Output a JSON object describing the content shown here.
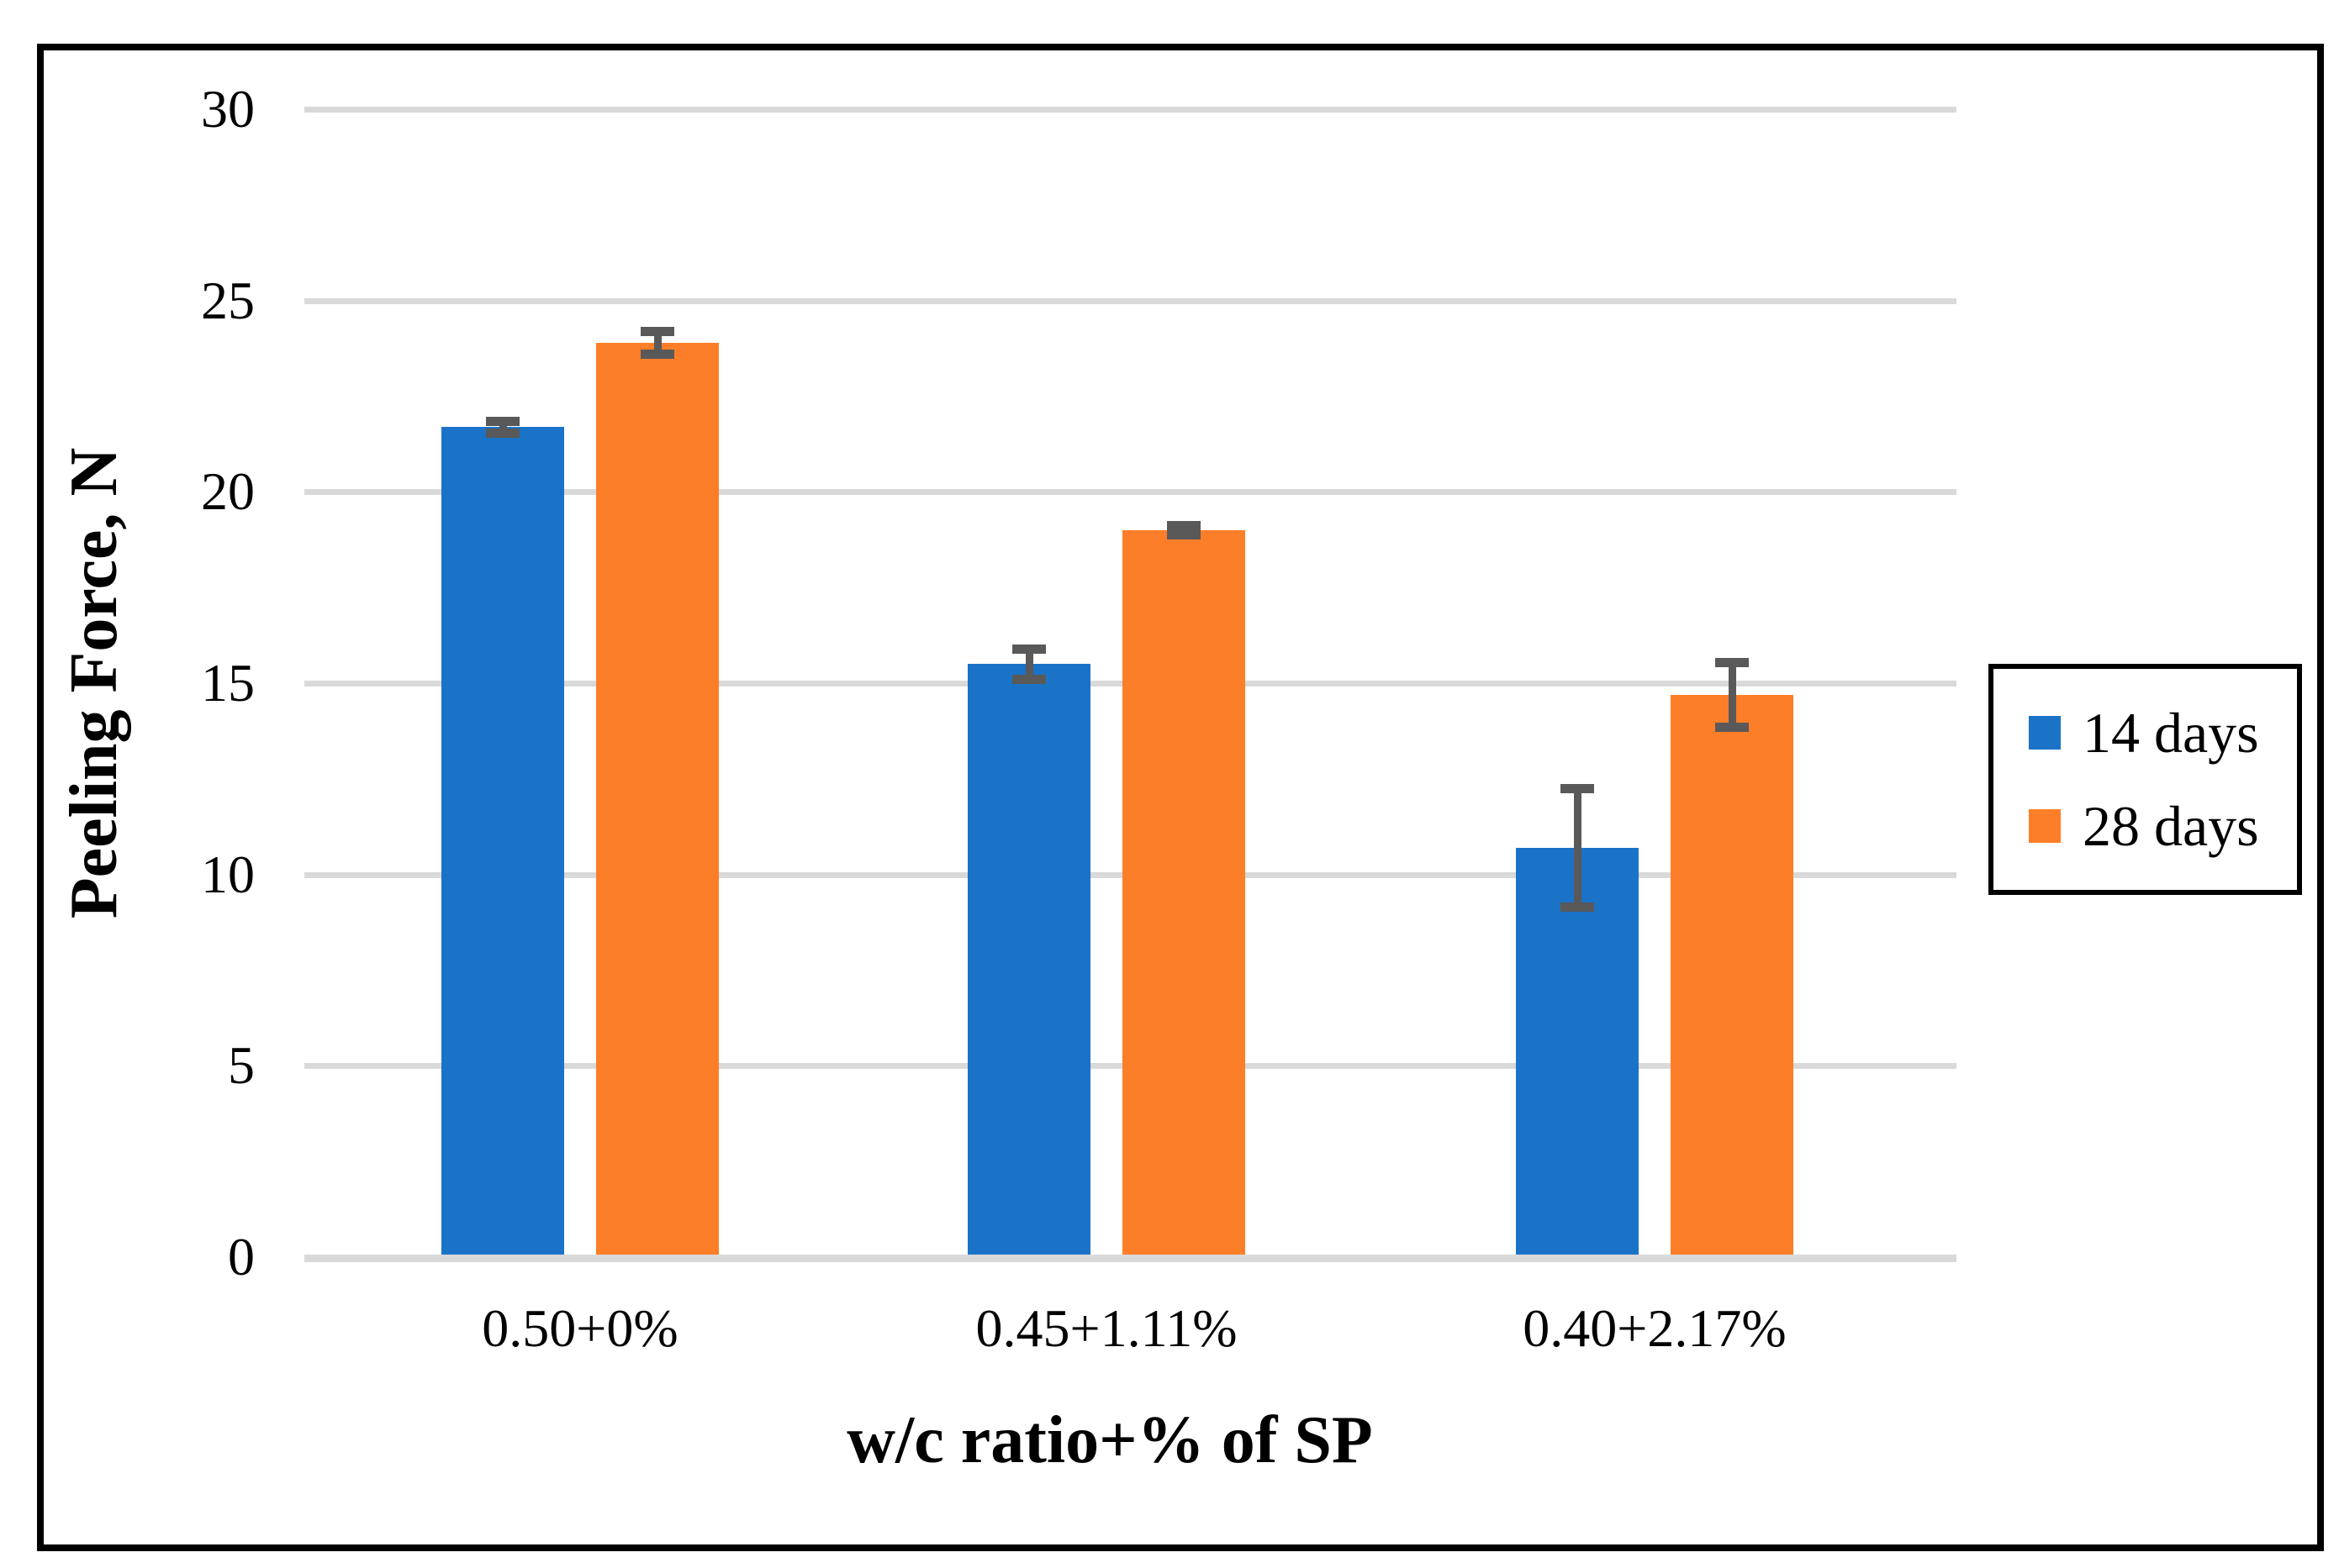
{
  "chart_data": {
    "type": "bar",
    "title": "",
    "categories": [
      "0.50+0%",
      "0.45+1.11%",
      "0.40+2.17%"
    ],
    "series": [
      {
        "name": "14 days",
        "color": "#1B73C8",
        "values": [
          21.7,
          15.5,
          10.7
        ],
        "errors": [
          0.15,
          0.4,
          1.55
        ]
      },
      {
        "name": "28 days",
        "color": "#FD7E28",
        "values": [
          23.9,
          19.0,
          14.7
        ],
        "errors": [
          0.3,
          0.12,
          0.85
        ]
      }
    ],
    "xlabel": "w/c ratio+% of SP",
    "ylabel": "Peeling Force, N",
    "ylim": [
      0,
      30
    ],
    "yticks": [
      0,
      5,
      10,
      15,
      20,
      25,
      30
    ],
    "grid": true,
    "legend_position": "right",
    "grid_color": "#D9D9D9",
    "error_bar_color": "#595959",
    "frame_color": "#000000"
  }
}
